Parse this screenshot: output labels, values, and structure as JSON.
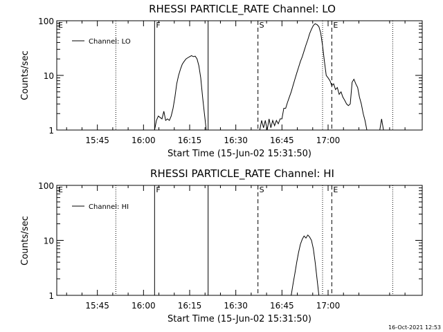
{
  "timestamp": "16-Oct-2021 12:53",
  "colors": {
    "background": "#ffffff",
    "ink": "#000000"
  },
  "chart_data": [
    {
      "type": "line",
      "title": "RHESSI PARTICLE_RATE Channel: LO",
      "xlabel": "Start Time (15-Jun-02 15:31:50)",
      "ylabel": "Counts/sec",
      "y_scale": "log",
      "ylim": [
        1,
        100
      ],
      "y_ticks": [
        {
          "value": 1,
          "label": "1"
        },
        {
          "value": 10,
          "label": "10"
        },
        {
          "value": 100,
          "label": "100"
        }
      ],
      "xlim_minutes": [
        15.53,
        17.51
      ],
      "x_ticks": [
        {
          "value": 15.75,
          "label": "15:45"
        },
        {
          "value": 16.0,
          "label": "16:00"
        },
        {
          "value": 16.25,
          "label": "16:15"
        },
        {
          "value": 16.5,
          "label": "16:30"
        },
        {
          "value": 16.75,
          "label": "16:45"
        },
        {
          "value": 17.0,
          "label": "17:00"
        }
      ],
      "legend": {
        "label": "Channel: LO",
        "placement": "top-left"
      },
      "markers": [
        {
          "label": "E",
          "x": 15.53,
          "style": "none"
        },
        {
          "label": "",
          "x": 15.85,
          "style": "dotted"
        },
        {
          "label": "F",
          "x": 16.06,
          "style": "solid"
        },
        {
          "label": "",
          "x": 16.35,
          "style": "solid"
        },
        {
          "label": "S",
          "x": 16.62,
          "style": "dashed"
        },
        {
          "label": "",
          "x": 16.97,
          "style": "dotted"
        },
        {
          "label": "E",
          "x": 17.02,
          "style": "dashed"
        },
        {
          "label": "",
          "x": 17.35,
          "style": "dotted"
        }
      ],
      "series": [
        {
          "segments": [
            [
              [
                16.06,
                1.0
              ],
              [
                16.07,
                1.5
              ],
              [
                16.08,
                1.8
              ],
              [
                16.09,
                1.7
              ],
              [
                16.1,
                1.6
              ],
              [
                16.11,
                2.2
              ],
              [
                16.12,
                1.5
              ],
              [
                16.13,
                1.6
              ],
              [
                16.14,
                1.5
              ],
              [
                16.15,
                1.8
              ],
              [
                16.16,
                2.5
              ],
              [
                16.17,
                4.0
              ],
              [
                16.18,
                7.0
              ],
              [
                16.19,
                10.0
              ],
              [
                16.2,
                13.0
              ],
              [
                16.21,
                16.0
              ],
              [
                16.22,
                18.0
              ],
              [
                16.23,
                20.0
              ],
              [
                16.24,
                21.0
              ],
              [
                16.25,
                22.0
              ],
              [
                16.26,
                23.0
              ],
              [
                16.27,
                22.0
              ],
              [
                16.28,
                22.5
              ],
              [
                16.29,
                20.0
              ],
              [
                16.3,
                15.0
              ],
              [
                16.31,
                9.0
              ],
              [
                16.32,
                4.0
              ],
              [
                16.33,
                2.0
              ],
              [
                16.34,
                1.0
              ]
            ],
            [
              [
                16.63,
                1.0
              ],
              [
                16.64,
                1.5
              ],
              [
                16.65,
                1.1
              ],
              [
                16.66,
                1.5
              ],
              [
                16.67,
                1.0
              ],
              [
                16.68,
                1.6
              ],
              [
                16.69,
                1.1
              ],
              [
                16.7,
                1.5
              ],
              [
                16.71,
                1.2
              ],
              [
                16.72,
                1.5
              ],
              [
                16.73,
                1.3
              ],
              [
                16.74,
                1.6
              ],
              [
                16.75,
                1.6
              ],
              [
                16.76,
                2.5
              ],
              [
                16.77,
                2.5
              ],
              [
                16.78,
                3.2
              ],
              [
                16.79,
                4.0
              ],
              [
                16.8,
                5.0
              ],
              [
                16.81,
                6.5
              ],
              [
                16.82,
                8.5
              ],
              [
                16.83,
                11.0
              ],
              [
                16.84,
                14.0
              ],
              [
                16.85,
                18.0
              ],
              [
                16.86,
                22.0
              ],
              [
                16.87,
                28.0
              ],
              [
                16.88,
                36.0
              ],
              [
                16.89,
                45.0
              ],
              [
                16.9,
                58.0
              ],
              [
                16.91,
                70.0
              ],
              [
                16.92,
                82.0
              ],
              [
                16.93,
                88.0
              ],
              [
                16.94,
                85.0
              ],
              [
                16.95,
                78.0
              ],
              [
                16.96,
                60.0
              ],
              [
                16.97,
                35.0
              ],
              [
                16.98,
                18.0
              ],
              [
                16.99,
                10.0
              ],
              [
                17.0,
                9.0
              ],
              [
                17.01,
                8.0
              ],
              [
                17.02,
                6.5
              ],
              [
                17.03,
                7.0
              ],
              [
                17.04,
                5.5
              ],
              [
                17.05,
                6.0
              ],
              [
                17.06,
                4.5
              ],
              [
                17.07,
                5.0
              ],
              [
                17.08,
                4.0
              ],
              [
                17.09,
                3.5
              ],
              [
                17.1,
                3.0
              ],
              [
                17.11,
                2.8
              ],
              [
                17.12,
                3.0
              ],
              [
                17.13,
                7.5
              ],
              [
                17.14,
                8.5
              ],
              [
                17.15,
                7.0
              ],
              [
                17.16,
                6.0
              ],
              [
                17.17,
                4.0
              ],
              [
                17.18,
                3.0
              ],
              [
                17.19,
                2.0
              ],
              [
                17.2,
                1.5
              ],
              [
                17.21,
                1.0
              ]
            ],
            [
              [
                17.28,
                1.0
              ],
              [
                17.29,
                1.6
              ],
              [
                17.3,
                1.0
              ]
            ]
          ]
        }
      ]
    },
    {
      "type": "line",
      "title": "RHESSI PARTICLE_RATE Channel: HI",
      "xlabel": "Start Time (15-Jun-02 15:31:50)",
      "ylabel": "Counts/sec",
      "y_scale": "log",
      "ylim": [
        1,
        100
      ],
      "y_ticks": [
        {
          "value": 1,
          "label": "1"
        },
        {
          "value": 10,
          "label": "10"
        },
        {
          "value": 100,
          "label": "100"
        }
      ],
      "xlim_minutes": [
        15.53,
        17.51
      ],
      "x_ticks": [
        {
          "value": 15.75,
          "label": "15:45"
        },
        {
          "value": 16.0,
          "label": "16:00"
        },
        {
          "value": 16.25,
          "label": "16:15"
        },
        {
          "value": 16.5,
          "label": "16:30"
        },
        {
          "value": 16.75,
          "label": "16:45"
        },
        {
          "value": 17.0,
          "label": "17:00"
        }
      ],
      "legend": {
        "label": "Channel: HI",
        "placement": "top-left"
      },
      "markers": [
        {
          "label": "E",
          "x": 15.53,
          "style": "none"
        },
        {
          "label": "",
          "x": 15.85,
          "style": "dotted"
        },
        {
          "label": "F",
          "x": 16.06,
          "style": "solid"
        },
        {
          "label": "",
          "x": 16.35,
          "style": "solid"
        },
        {
          "label": "S",
          "x": 16.62,
          "style": "dashed"
        },
        {
          "label": "",
          "x": 16.97,
          "style": "dotted"
        },
        {
          "label": "E",
          "x": 17.02,
          "style": "dashed"
        },
        {
          "label": "",
          "x": 17.35,
          "style": "dotted"
        }
      ],
      "series": [
        {
          "segments": [
            [
              [
                16.8,
                1.0
              ],
              [
                16.81,
                1.6
              ],
              [
                16.82,
                2.5
              ],
              [
                16.83,
                4.0
              ],
              [
                16.84,
                6.0
              ],
              [
                16.85,
                8.5
              ],
              [
                16.86,
                10.5
              ],
              [
                16.87,
                12.0
              ],
              [
                16.88,
                11.0
              ],
              [
                16.89,
                12.5
              ],
              [
                16.9,
                11.5
              ],
              [
                16.91,
                10.0
              ],
              [
                16.92,
                7.0
              ],
              [
                16.93,
                4.0
              ],
              [
                16.94,
                2.0
              ],
              [
                16.95,
                1.0
              ]
            ]
          ]
        }
      ]
    }
  ]
}
